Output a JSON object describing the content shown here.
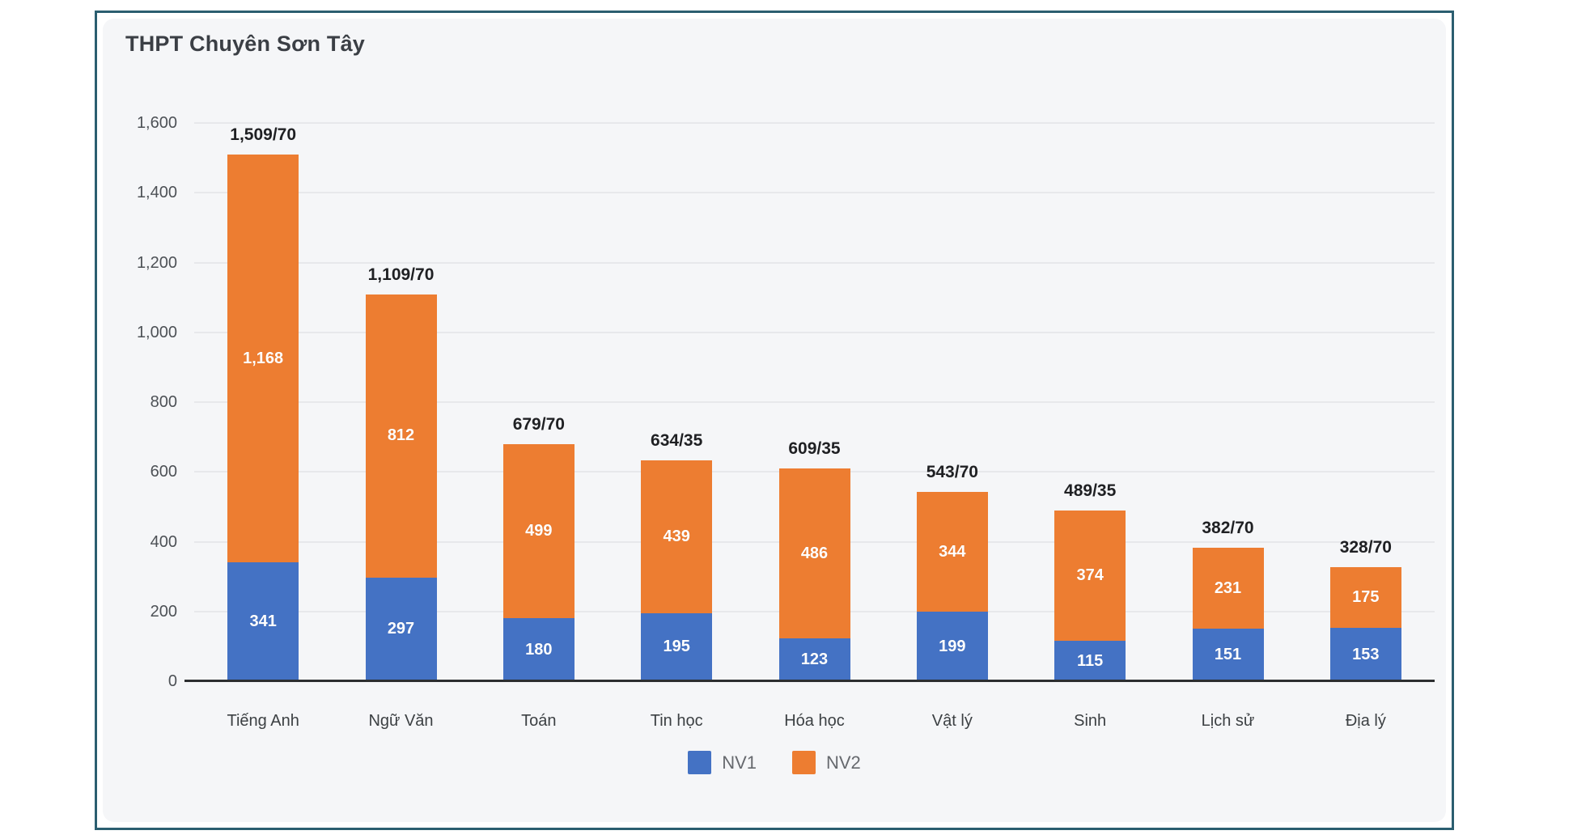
{
  "page": {
    "title": "THPT Chuyên Sơn Tây"
  },
  "legend": {
    "items": [
      {
        "label": "NV1",
        "color": "#4472c4"
      },
      {
        "label": "NV2",
        "color": "#ed7d31"
      }
    ]
  },
  "colors": {
    "frame_border": "#2b5e70",
    "card_background": "#f5f6f8",
    "nv1_blue": "#4472c4",
    "nv2_orange": "#ed7d31",
    "gridline": "#e7e8eb",
    "axis_line": "#2c2e30",
    "title_text": "#3b3f45",
    "tick_text": "#4d5156",
    "total_label_text": "#1f2023",
    "legend_text": "#66696e"
  },
  "chart_data": {
    "type": "bar",
    "stacked": true,
    "title": "THPT Chuyên Sơn Tây",
    "categories": [
      "Tiếng Anh",
      "Ngữ Văn",
      "Toán",
      "Tin học",
      "Hóa học",
      "Vật lý",
      "Sinh",
      "Lịch sử",
      "Địa lý"
    ],
    "series": [
      {
        "name": "NV1",
        "color": "#4472c4",
        "values": [
          341,
          297,
          180,
          195,
          123,
          199,
          115,
          151,
          153
        ]
      },
      {
        "name": "NV2",
        "color": "#ed7d31",
        "values": [
          1168,
          812,
          499,
          439,
          486,
          344,
          374,
          231,
          175
        ]
      }
    ],
    "totals": [
      1509,
      1109,
      679,
      634,
      609,
      543,
      489,
      382,
      328
    ],
    "total_labels": [
      "1,509/70",
      "1,109/70",
      "679/70",
      "634/35",
      "609/35",
      "543/70",
      "489/35",
      "382/70",
      "328/70"
    ],
    "xlabel": "",
    "ylabel": "",
    "ylim": [
      0,
      1600
    ],
    "yticks": [
      0,
      200,
      400,
      600,
      800,
      1000,
      1200,
      1400,
      1600
    ],
    "grid": true,
    "legend_position": "bottom"
  }
}
